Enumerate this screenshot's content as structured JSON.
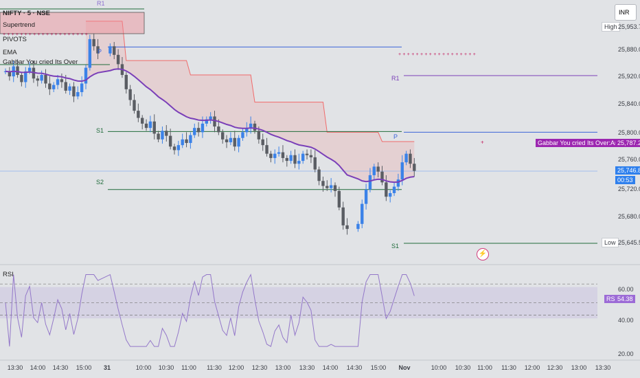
{
  "legend": {
    "symbol": "NIFTY · 5 · NSE",
    "supertrend": "Supertrend",
    "pivots": "PIVOTS",
    "ema": "EMA",
    "anchor": "Gabbar You cried Its Over"
  },
  "currency": "INR",
  "price_axis": [
    "25,920.00",
    "25,880.00",
    "25,840.00",
    "25,800.00",
    "25,760.00",
    "25,680.00"
  ],
  "tags": {
    "high_label": "High",
    "high_value": "25,953.75",
    "low_label": "Low",
    "low_value": "25,645.50",
    "anchor_label": "Gabbar You cried Its Over:Anchor Point",
    "anchor_value": "25,787.27",
    "last_price": "25,746.80",
    "countdown": "00:53",
    "partial_axis_value": "25,720.00"
  },
  "pivots": {
    "p_left": "P",
    "s1_left": "S1",
    "s2_left": "S2",
    "r1_top": "R1",
    "r1_right": "R1",
    "p_right": "P",
    "s1_right": "S1"
  },
  "rsi": {
    "title": "RSI",
    "label": "RSI",
    "value": "54.38",
    "axis": [
      "60.00",
      "40.00",
      "20.00"
    ]
  },
  "time_axis": [
    "13:30",
    "14:00",
    "14:30",
    "15:00",
    "31",
    "10:00",
    "10:30",
    "11:00",
    "11:30",
    "12:00",
    "12:30",
    "13:00",
    "13:30",
    "14:00",
    "14:30",
    "15:00",
    "Nov",
    "10:00",
    "10:30",
    "11:00",
    "11:30",
    "12:00",
    "12:30",
    "13:00",
    "13:30"
  ],
  "colors": {
    "bull": "#3b82e8",
    "bear": "#5a5d63",
    "ema": "#7a3fb8",
    "supertrend": "#f06a6a",
    "supertrend_fill": "rgba(240,140,140,0.22)",
    "pivot_p": "#3a63d8",
    "pivot_s": "#1f6b3a",
    "pivot_r": "#7a3fb8",
    "rsi": "#9377c9",
    "anchor_tag": "#9c27b0",
    "price_tag": "#2f80ed"
  },
  "chart_data": {
    "type": "candlestick",
    "title": "NIFTY · 5 · NSE",
    "ylim": [
      25620,
      25975
    ],
    "x": [
      "13:30",
      "14:00",
      "14:30",
      "15:00",
      "31",
      "10:00",
      "10:30",
      "11:00",
      "11:30",
      "12:00",
      "12:30",
      "13:00",
      "13:30",
      "14:00",
      "14:30",
      "15:00",
      "Nov",
      "10:00",
      "10:30",
      "11:00",
      "11:30",
      "12:00",
      "12:30",
      "13:00",
      "13:30"
    ],
    "high": 25953.75,
    "low": 25645.5,
    "last": 25746.8,
    "anchor_point": 25787.27,
    "pivot_levels": {
      "R1": 25879,
      "P_left": 25919,
      "S1_left": 25801,
      "S2_left": 25720,
      "P_right": 25800,
      "S1_right": 25645
    },
    "closes": [
      25885,
      25878,
      25892,
      25880,
      25870,
      25885,
      25890,
      25875,
      25872,
      25880,
      25868,
      25860,
      25866,
      25874,
      25870,
      25858,
      25864,
      25850,
      25856,
      25868,
      25890,
      25930,
      25920,
      25910,
      25920,
      25908,
      25895,
      25880,
      25860,
      25845,
      25830,
      25820,
      25812,
      25806,
      25815,
      25798,
      25790,
      25802,
      25795,
      25780,
      25775,
      25782,
      25790,
      25785,
      25796,
      25806,
      25800,
      25812,
      25818,
      25822,
      25808,
      25800,
      25790,
      25786,
      25792,
      25780,
      25792,
      25800,
      25806,
      25812,
      25802,
      25790,
      25782,
      25770,
      25764,
      25770,
      25772,
      25764,
      25760,
      25768,
      25756,
      25760,
      25770,
      25768,
      25765,
      25748,
      25732,
      25725,
      25722,
      25726,
      25718,
      25695,
      25670,
      25665,
      25672,
      25700,
      25720,
      25740,
      25752,
      25745,
      25730,
      25710,
      25715,
      25724,
      25734,
      25758,
      25770,
      25756,
      25746
    ],
    "rsi_series": {
      "name": "RSI",
      "last": 54.38,
      "ylim": [
        15,
        70
      ]
    }
  }
}
